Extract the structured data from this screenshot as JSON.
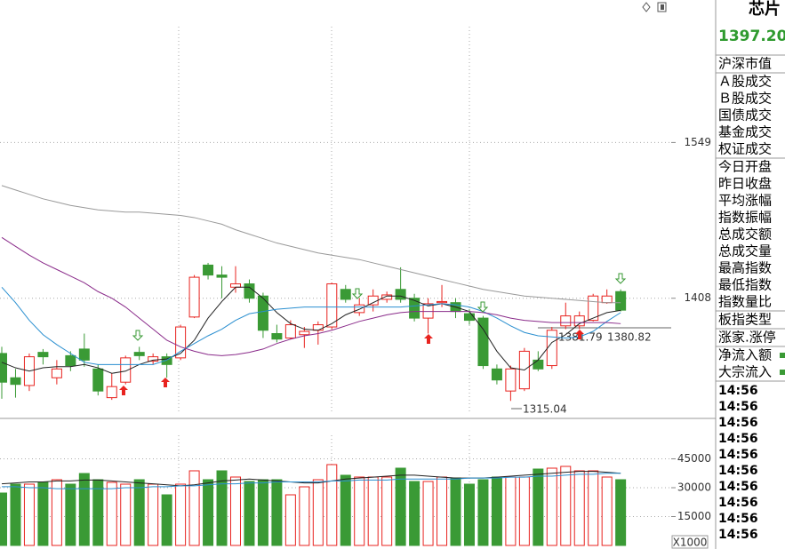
{
  "chart_data": [
    {
      "type": "candlestick",
      "ylim": [
        1300,
        1678
      ],
      "yticks": [
        1408,
        1549
      ],
      "grid": true,
      "up_color": "#e8231f",
      "down_color": "#3a9a35",
      "open": [
        1358,
        1336,
        1329,
        1359,
        1336,
        1356,
        1362,
        1344,
        1318,
        1332,
        1359,
        1351,
        1355,
        1354,
        1391,
        1438,
        1429,
        1418,
        1421,
        1410,
        1376,
        1372,
        1375,
        1379,
        1382,
        1416,
        1395,
        1402,
        1407,
        1416,
        1408,
        1390,
        1404,
        1404,
        1394,
        1390,
        1344,
        1324,
        1326,
        1352,
        1347,
        1383,
        1383,
        1388,
        1404,
        1414
      ],
      "high": [
        1364,
        1344,
        1358,
        1362,
        1352,
        1360,
        1376,
        1348,
        1340,
        1356,
        1364,
        1358,
        1358,
        1384,
        1429,
        1440,
        1437,
        1437,
        1425,
        1413,
        1384,
        1388,
        1382,
        1387,
        1422,
        1420,
        1408,
        1416,
        1414,
        1436,
        1412,
        1408,
        1420,
        1408,
        1398,
        1392,
        1348,
        1347,
        1363,
        1360,
        1382,
        1404,
        1396,
        1412,
        1416,
        1416
      ],
      "low": [
        1317,
        1318,
        1324,
        1348,
        1330,
        1342,
        1346,
        1320,
        1316,
        1330,
        1352,
        1348,
        1336,
        1352,
        1390,
        1425,
        1408,
        1413,
        1404,
        1372,
        1368,
        1371,
        1363,
        1366,
        1380,
        1404,
        1392,
        1396,
        1404,
        1404,
        1387,
        1376,
        1400,
        1390,
        1384,
        1344,
        1330,
        1315.04,
        1324,
        1342,
        1344,
        1380,
        1380,
        1387,
        1403,
        1396
      ],
      "close": [
        1332,
        1330,
        1355,
        1355,
        1344,
        1347,
        1352,
        1324,
        1328,
        1354,
        1356,
        1355,
        1348,
        1382,
        1427,
        1429,
        1427,
        1421,
        1408,
        1379,
        1371,
        1384,
        1378,
        1384,
        1421,
        1407,
        1402,
        1410,
        1411,
        1407,
        1390,
        1403,
        1405,
        1396,
        1388,
        1347,
        1334,
        1344,
        1360,
        1344,
        1379,
        1392,
        1392,
        1410,
        1410,
        1397.2
      ],
      "series": [
        {
          "color": "#222222",
          "values": [
            1350,
            1345,
            1342,
            1345,
            1346,
            1346,
            1348,
            1345,
            1340,
            1342,
            1348,
            1352,
            1353,
            1358,
            1370,
            1390,
            1405,
            1418,
            1418,
            1408,
            1395,
            1385,
            1380,
            1379,
            1385,
            1393,
            1398,
            1404,
            1410,
            1410,
            1406,
            1401,
            1403,
            1400,
            1396,
            1380,
            1360,
            1345,
            1343,
            1352,
            1368,
            1375,
            1385,
            1390,
            1395,
            1397
          ]
        },
        {
          "color": "#2a8fd0",
          "values": [
            1418,
            1404,
            1388,
            1375,
            1366,
            1358,
            1350,
            1348,
            1348,
            1348,
            1348,
            1348,
            1352,
            1360,
            1367,
            1374,
            1380,
            1388,
            1394,
            1396,
            1398,
            1399,
            1400,
            1400,
            1400,
            1400,
            1400,
            1400,
            1400,
            1400,
            1401,
            1402,
            1403,
            1402,
            1400,
            1396,
            1390,
            1383,
            1377,
            1374,
            1373,
            1372,
            1373,
            1378,
            1387,
            1395
          ]
        },
        {
          "color": "#8a2b8a",
          "values": [
            1463,
            1455,
            1447,
            1440,
            1434,
            1428,
            1422,
            1414,
            1408,
            1400,
            1390,
            1380,
            1370,
            1364,
            1360,
            1357,
            1356,
            1357,
            1359,
            1362,
            1367,
            1371,
            1374,
            1376,
            1379,
            1383,
            1387,
            1390,
            1393,
            1395,
            1396,
            1396,
            1396,
            1396,
            1396,
            1395,
            1393,
            1390,
            1388,
            1387,
            1386,
            1386,
            1386,
            1386,
            1386,
            1385
          ]
        },
        {
          "color": "#999999",
          "values": [
            1510,
            1506,
            1502,
            1498,
            1495,
            1492,
            1490,
            1488,
            1487,
            1486,
            1486,
            1485,
            1484,
            1483,
            1481,
            1478,
            1475,
            1470,
            1466,
            1462,
            1458,
            1455,
            1452,
            1449,
            1447,
            1445,
            1443,
            1440,
            1437,
            1434,
            1431,
            1428,
            1425,
            1422,
            1419,
            1416,
            1414,
            1412,
            1410,
            1409,
            1408,
            1407,
            1406,
            1405,
            1404,
            1404
          ]
        }
      ],
      "annotations": [
        "1315.04",
        "1381.79",
        "1380.82"
      ]
    },
    {
      "type": "bar",
      "ylim": [
        0,
        62763
      ],
      "yticks": [
        15000,
        30000,
        45000
      ],
      "grid": true,
      "unit_label": "X1000",
      "values": [
        27230,
        31840,
        31840,
        32770,
        34150,
        31840,
        37380,
        34150,
        32770,
        31840,
        34150,
        31840,
        26300,
        31840,
        38770,
        34150,
        38770,
        35540,
        33230,
        34150,
        34150,
        26300,
        30460,
        34150,
        42000,
        36460,
        35540,
        35540,
        35540,
        40150,
        33230,
        33230,
        35540,
        35080,
        31840,
        34150,
        35540,
        35540,
        35540,
        39690,
        40150,
        41070,
        38770,
        38770,
        35540,
        34150
      ],
      "series": [
        {
          "color": "#222222",
          "values": [
            32000,
            32500,
            33000,
            33000,
            33500,
            33500,
            34000,
            34000,
            33500,
            33000,
            32500,
            32000,
            31500,
            31000,
            31500,
            32500,
            33500,
            34000,
            34500,
            34000,
            33500,
            33000,
            32500,
            32500,
            33500,
            34500,
            35000,
            35500,
            36000,
            36500,
            36500,
            36000,
            35500,
            35000,
            35000,
            35000,
            35500,
            36000,
            36500,
            37000,
            37500,
            38000,
            38500,
            38500,
            38000,
            37500
          ]
        },
        {
          "color": "#2a8fd0",
          "values": [
            30500,
            30500,
            30000,
            30000,
            29500,
            29500,
            29500,
            29500,
            29500,
            30000,
            30000,
            30500,
            30500,
            31000,
            31000,
            31500,
            32000,
            32000,
            32500,
            32500,
            33000,
            33000,
            33000,
            33000,
            33500,
            33500,
            34000,
            34000,
            34000,
            34500,
            34500,
            34500,
            34500,
            34500,
            35000,
            35000,
            35000,
            35500,
            35500,
            36000,
            36000,
            36500,
            37000,
            37000,
            37500,
            37500
          ]
        }
      ]
    }
  ],
  "sidebar": {
    "title": "芯片",
    "price": "1397.20",
    "groups": [
      [
        "沪深市值"
      ],
      [
        "Ａ股成交",
        "Ｂ股成交",
        "国债成交",
        "基金成交",
        "权证成交"
      ],
      [
        "今日开盘",
        "昨日收盘",
        "平均涨幅",
        "指数振幅",
        "总成交额",
        "总成交量",
        "最高指数",
        "最低指数",
        "指数量比"
      ],
      [
        "板指类型"
      ],
      [
        "涨家.涨停"
      ],
      [
        "净流入额",
        "大宗流入"
      ]
    ],
    "times": [
      "14:56",
      "14:56",
      "14:56",
      "14:56",
      "14:56",
      "14:56",
      "14:56",
      "14:56",
      "14:56",
      "14:56"
    ]
  }
}
